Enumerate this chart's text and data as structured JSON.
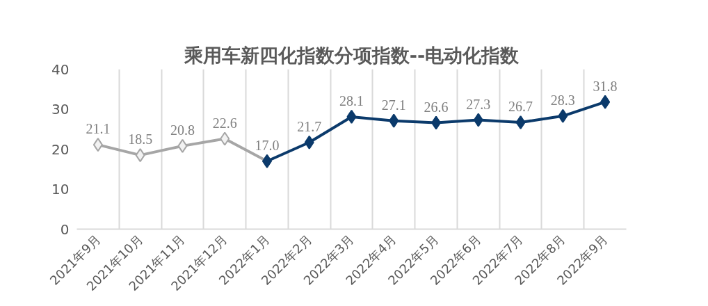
{
  "chart_data": {
    "type": "line",
    "title": "乘用车新四化指数分项指数--电动化指数",
    "categories": [
      "2021年9月",
      "2021年10月",
      "2021年11月",
      "2021年12月",
      "2022年1月",
      "2022年2月",
      "2022年3月",
      "2022年4月",
      "2022年5月",
      "2022年6月",
      "2022年7月",
      "2022年8月",
      "2022年9月"
    ],
    "series": [
      {
        "color": "#a6a6a6",
        "values": [
          21.1,
          18.5,
          20.8,
          22.6,
          17.0,
          null,
          null,
          null,
          null,
          null,
          null,
          null,
          null
        ],
        "value_labels": [
          "21.1",
          "18.5",
          "20.8",
          "22.6",
          "17.0",
          null,
          null,
          null,
          null,
          null,
          null,
          null,
          null
        ]
      },
      {
        "color": "#0b3a6b",
        "values": [
          null,
          null,
          null,
          null,
          17.0,
          21.7,
          28.1,
          27.1,
          26.6,
          27.3,
          26.7,
          28.3,
          31.8
        ],
        "value_labels": [
          null,
          null,
          null,
          null,
          null,
          "21.7",
          "28.1",
          "27.1",
          "26.6",
          "27.3",
          "26.7",
          "28.3",
          "31.8"
        ]
      }
    ],
    "ylim": [
      0,
      40
    ],
    "yticks": [
      0,
      10,
      20,
      30,
      40
    ],
    "grid": "x",
    "marker": "diamond"
  }
}
